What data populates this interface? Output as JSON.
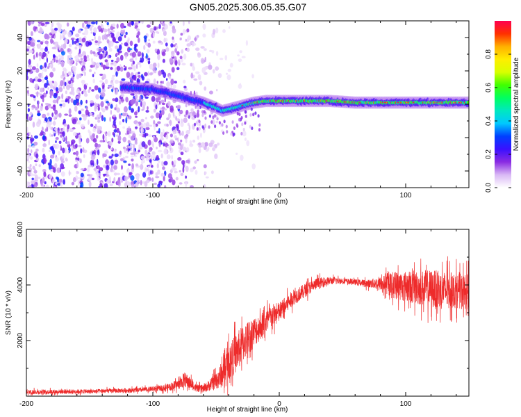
{
  "title": "GN05.2025.306.05.35.G07",
  "colors": {
    "snr_line": "#ee2b2b",
    "frame": "#000000",
    "background": "#ffffff"
  },
  "chart_data": [
    {
      "type": "heatmap",
      "name": "spectrogram",
      "xlabel": "Height of straight line (km)",
      "ylabel": "Frequency (Hz)",
      "xlim": [
        -200,
        150
      ],
      "ylim": [
        -50,
        50
      ],
      "x_ticks": [
        -200,
        -100,
        0,
        100
      ],
      "y_ticks": [
        -40,
        -20,
        0,
        20,
        40
      ],
      "x_tick_labels": [
        "-200",
        "-100",
        "0",
        "100"
      ],
      "y_tick_labels": [
        "-40",
        "-20",
        "0",
        "20",
        "40"
      ],
      "colorbar": {
        "label": "Normalized spectral amplitude",
        "range": [
          0,
          1
        ],
        "ticks": [
          0.0,
          0.2,
          0.4,
          0.6,
          0.8
        ],
        "tick_labels": [
          "0.0",
          "0.2",
          "0.4",
          "0.6",
          "0.8"
        ],
        "colormap": [
          "#ffffff",
          "#d9b8f5",
          "#8a2be2",
          "#3a10ff",
          "#0040ff",
          "#00c8ff",
          "#00e8c0",
          "#00ff60",
          "#40ff00",
          "#d8ff00",
          "#ffee00",
          "#ffb000",
          "#ff3000",
          "#ff0050"
        ]
      },
      "ridge": {
        "description": "Dominant frequency ridge vs. height",
        "x": [
          -120,
          -100,
          -90,
          -80,
          -70,
          -60,
          -50,
          -45,
          -40,
          -30,
          -20,
          -10,
          0,
          20,
          40,
          60,
          80,
          100,
          120,
          150
        ],
        "frequency_hz": [
          10,
          9,
          7,
          5,
          3,
          1,
          -2,
          -4,
          -3,
          -1,
          1,
          2,
          2,
          2,
          2,
          1,
          1,
          1,
          1,
          1
        ]
      },
      "noise_region_x": [
        -200,
        -60
      ]
    },
    {
      "type": "line",
      "name": "snr",
      "xlabel": "Height of straight line (km)",
      "ylabel": "SNR (10 * v/v)",
      "xlim": [
        -200,
        150
      ],
      "ylim": [
        0,
        6000
      ],
      "x_ticks": [
        -200,
        -100,
        0,
        100
      ],
      "y_ticks": [
        2000,
        4000,
        6000
      ],
      "x_tick_labels": [
        "-200",
        "-100",
        "0",
        "100"
      ],
      "y_tick_labels": [
        "2000",
        "4000",
        "6000"
      ],
      "series": [
        {
          "name": "SNR",
          "envelope_x": [
            -200,
            -150,
            -110,
            -100,
            -90,
            -80,
            -75,
            -70,
            -65,
            -60,
            -55,
            -50,
            -45,
            -40,
            -35,
            -30,
            -25,
            -20,
            -15,
            -10,
            -5,
            0,
            10,
            20,
            30,
            40,
            50,
            60,
            70,
            80,
            90,
            100,
            110,
            120,
            130,
            140,
            150
          ],
          "envelope_mean": [
            150,
            170,
            220,
            260,
            300,
            420,
            600,
            450,
            280,
            260,
            400,
            550,
            800,
            1200,
            1500,
            1800,
            2100,
            2300,
            2500,
            2700,
            2900,
            3000,
            3500,
            3800,
            4050,
            4150,
            4150,
            4100,
            4050,
            4050,
            4000,
            3950,
            3900,
            3850,
            3800,
            3800,
            3750
          ],
          "envelope_spread": [
            120,
            110,
            120,
            130,
            160,
            260,
            400,
            300,
            180,
            200,
            300,
            450,
            700,
            900,
            1000,
            1000,
            900,
            800,
            700,
            650,
            600,
            550,
            400,
            350,
            300,
            200,
            150,
            150,
            200,
            350,
            700,
            800,
            900,
            1000,
            1000,
            900,
            900
          ]
        }
      ]
    }
  ]
}
